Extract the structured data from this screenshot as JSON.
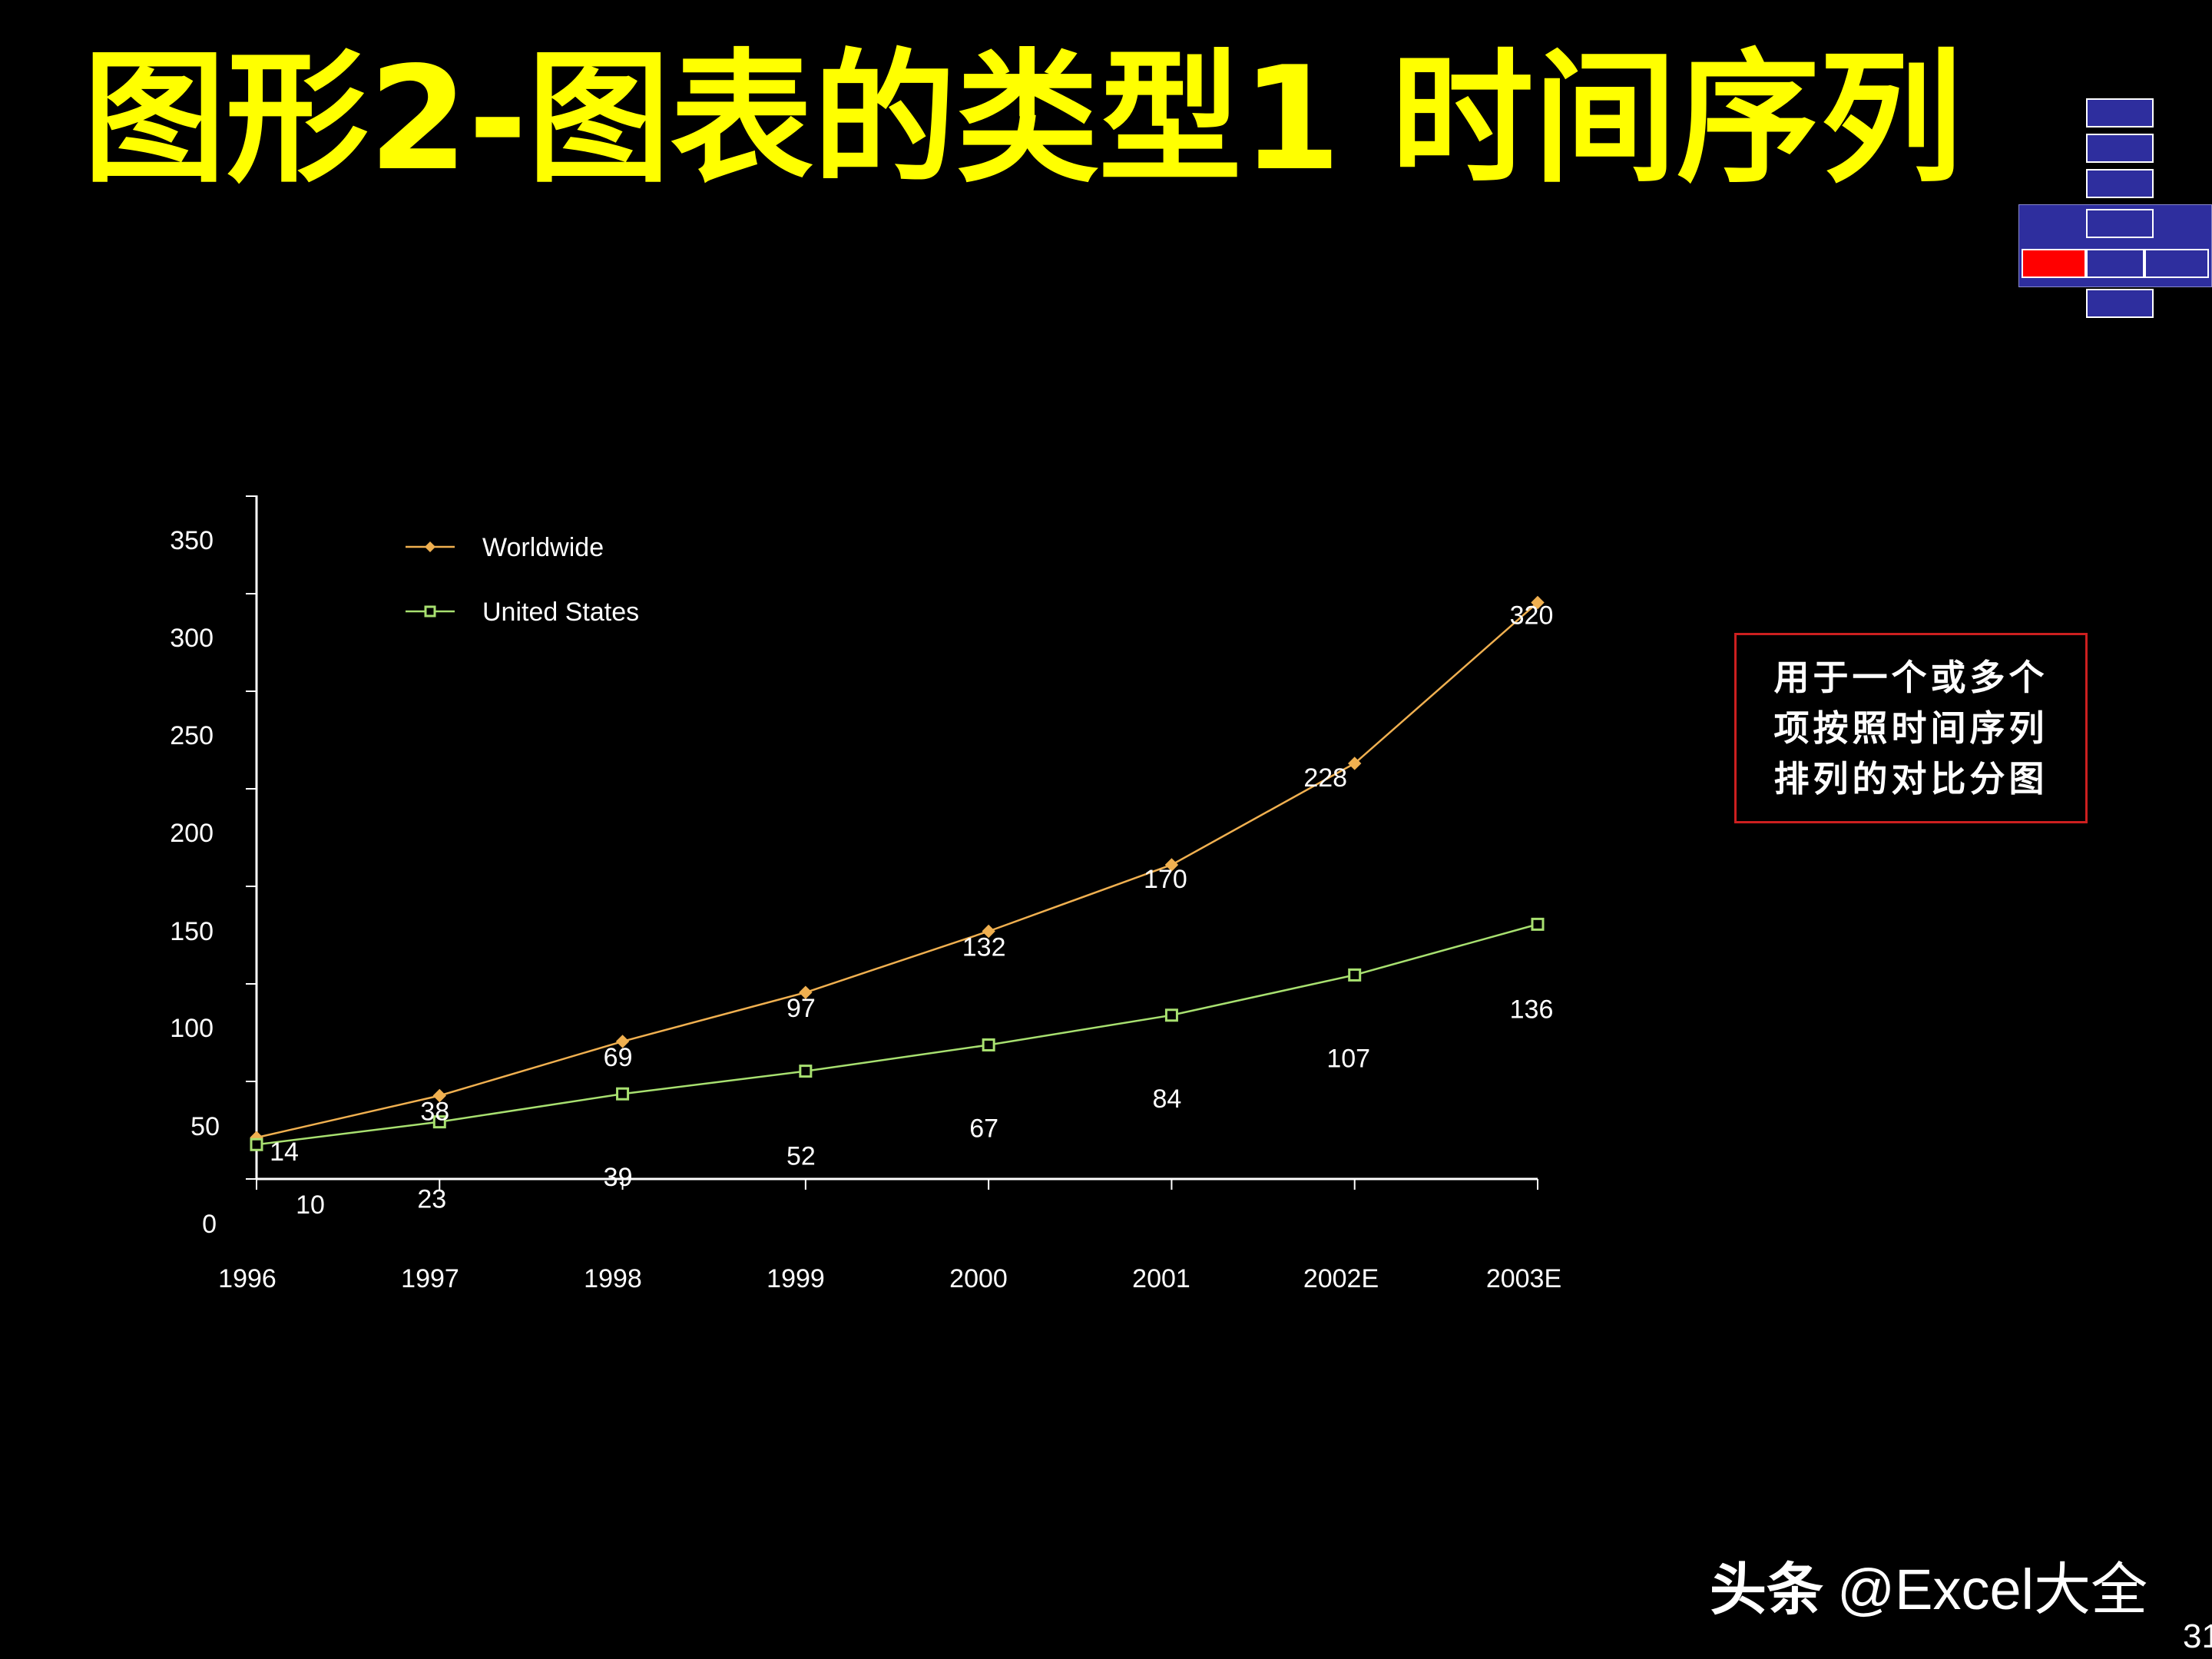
{
  "slide": {
    "title": "图形2-图表的类型1 时间序列",
    "note": "用于一个或多个项按照时间序列排列的对比分图",
    "watermark_brand": "头条",
    "watermark_handle": "@Excel大全",
    "page_number": "31"
  },
  "colors": {
    "background": "#000000",
    "title": "#ffff00",
    "worldwide": "#f0b050",
    "united_states": "#a8e070",
    "note_border": "#cc1f1f",
    "nav_box": "#2e2e9e",
    "nav_active": "#ff0000"
  },
  "chart_data": {
    "type": "line",
    "categories": [
      "1996",
      "1997",
      "1998",
      "1999",
      "2000",
      "2001",
      "2002E",
      "2003E"
    ],
    "series": [
      {
        "name": "Worldwide",
        "marker": "diamond",
        "values": [
          14,
          38,
          69,
          97,
          132,
          170,
          228,
          320
        ]
      },
      {
        "name": "United States",
        "marker": "square",
        "values": [
          10,
          23,
          39,
          52,
          67,
          84,
          107,
          136
        ]
      }
    ],
    "y_tick_labels": [
      "0",
      "50",
      "100",
      "150",
      "200",
      "250",
      "300",
      "350"
    ],
    "ylim": [
      0,
      350
    ],
    "legend_position": "top-left",
    "grid": false
  }
}
